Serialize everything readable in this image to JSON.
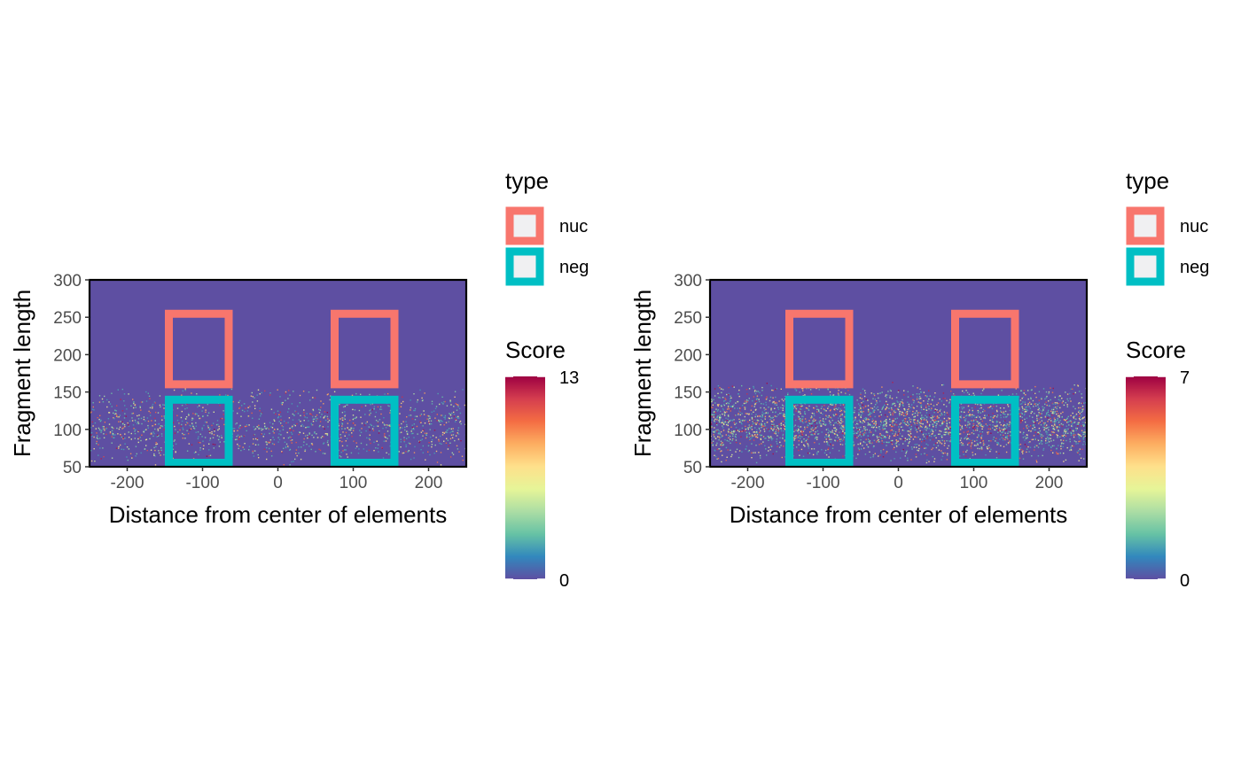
{
  "chart_data": [
    {
      "type": "heatmap",
      "title": "",
      "xlabel": "Distance from center of elements",
      "ylabel": "Fragment length",
      "xlim": [
        -250,
        250
      ],
      "ylim": [
        50,
        300
      ],
      "x_ticks": [
        -200,
        -100,
        0,
        100,
        200
      ],
      "y_ticks": [
        50,
        100,
        150,
        200,
        250,
        300
      ],
      "grid": false,
      "signal_y_range": [
        50,
        160
      ],
      "score_scale": {
        "title": "Score",
        "min": 0,
        "max": 13,
        "min_label": "0",
        "max_label": "13"
      },
      "legend": {
        "title": "type",
        "placement": "right",
        "items": [
          {
            "label": "nuc",
            "color": "#F8766D"
          },
          {
            "label": "neg",
            "color": "#00BFC4"
          }
        ]
      },
      "regions": [
        {
          "type": "nuc",
          "x": [
            -150,
            -60
          ],
          "y": [
            155,
            260
          ]
        },
        {
          "type": "nuc",
          "x": [
            70,
            160
          ],
          "y": [
            155,
            260
          ]
        },
        {
          "type": "neg",
          "x": [
            -150,
            -60
          ],
          "y": [
            50,
            145
          ]
        },
        {
          "type": "neg",
          "x": [
            70,
            160
          ],
          "y": [
            50,
            145
          ]
        }
      ]
    },
    {
      "type": "heatmap",
      "title": "",
      "xlabel": "Distance from center of elements",
      "ylabel": "Fragment length",
      "xlim": [
        -250,
        250
      ],
      "ylim": [
        50,
        300
      ],
      "x_ticks": [
        -200,
        -100,
        0,
        100,
        200
      ],
      "y_ticks": [
        50,
        100,
        150,
        200,
        250,
        300
      ],
      "grid": false,
      "signal_y_range": [
        55,
        165
      ],
      "score_scale": {
        "title": "Score",
        "min": 0,
        "max": 7,
        "min_label": "0",
        "max_label": "7"
      },
      "legend": {
        "title": "type",
        "placement": "right",
        "items": [
          {
            "label": "nuc",
            "color": "#F8766D"
          },
          {
            "label": "neg",
            "color": "#00BFC4"
          }
        ]
      },
      "regions": [
        {
          "type": "nuc",
          "x": [
            -150,
            -60
          ],
          "y": [
            155,
            260
          ]
        },
        {
          "type": "nuc",
          "x": [
            70,
            160
          ],
          "y": [
            155,
            260
          ]
        },
        {
          "type": "neg",
          "x": [
            -150,
            -60
          ],
          "y": [
            50,
            145
          ]
        },
        {
          "type": "neg",
          "x": [
            70,
            160
          ],
          "y": [
            50,
            145
          ]
        }
      ]
    }
  ],
  "colors": {
    "background_fill": "#5E4FA2",
    "spectral_ramp": [
      "#5E4FA2",
      "#3288BD",
      "#66C2A5",
      "#ABDDA4",
      "#E6F598",
      "#FEE08B",
      "#FDAE61",
      "#F46D43",
      "#D53E4F",
      "#9E0142"
    ]
  }
}
